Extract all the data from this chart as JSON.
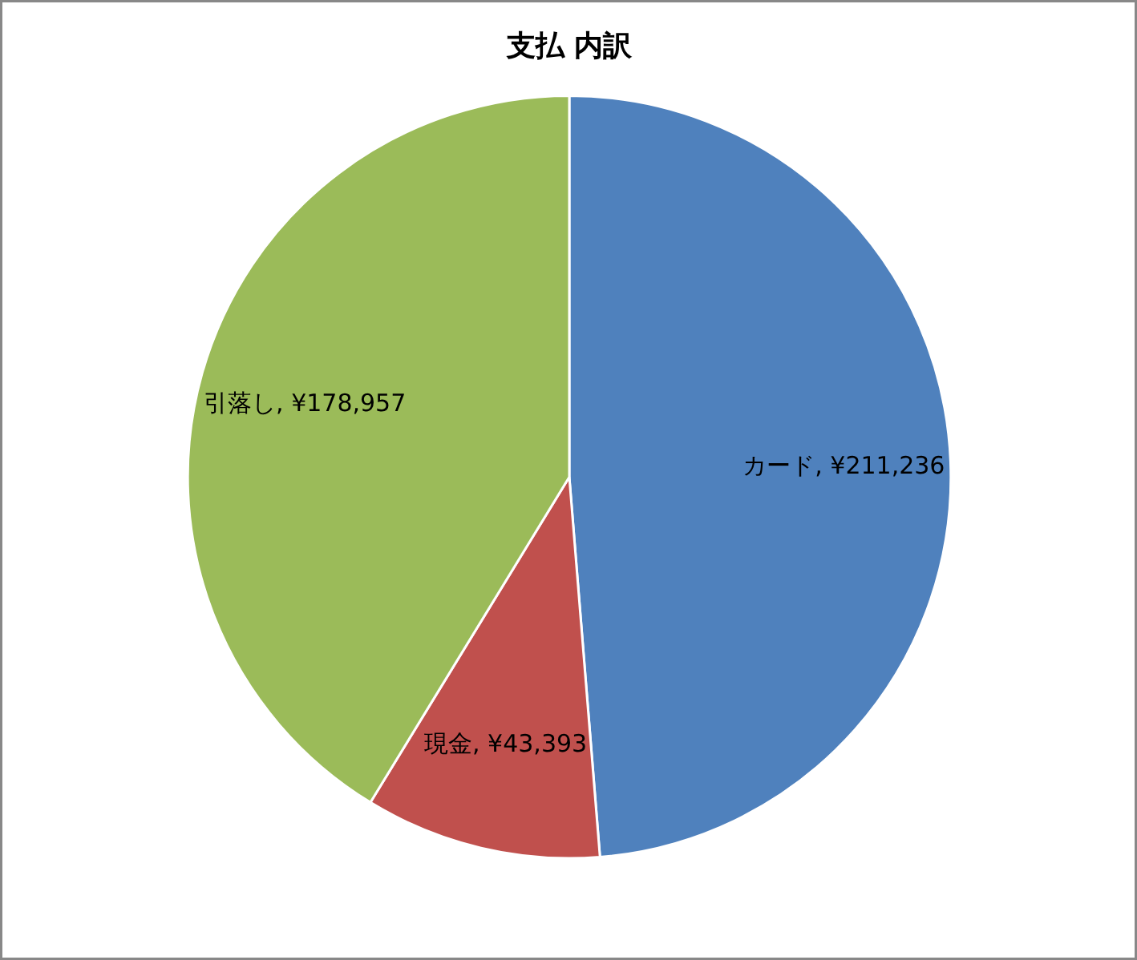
{
  "chart_data": {
    "type": "pie",
    "title": "支払 内訳",
    "categories": [
      "カード",
      "現金",
      "引落し"
    ],
    "values": [
      211236,
      43393,
      178957
    ],
    "colors": [
      "#4f81bd",
      "#c0504d",
      "#9bbb59"
    ],
    "value_labels": [
      "¥211,236",
      "¥43,393",
      "¥178,957"
    ]
  }
}
